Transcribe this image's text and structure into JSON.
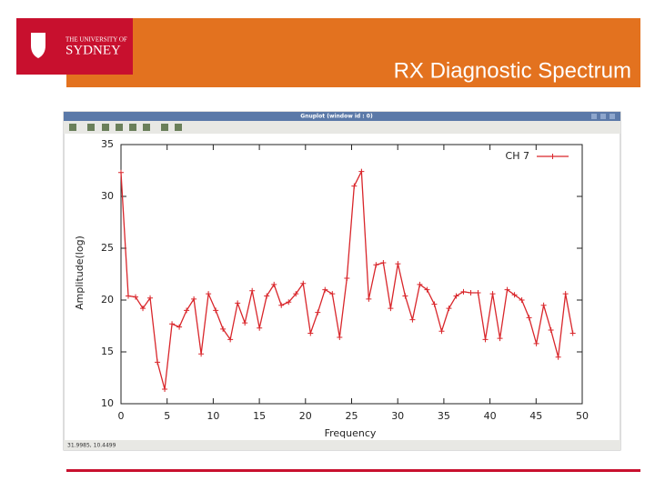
{
  "slide": {
    "title": "RX Diagnostic Spectrum",
    "logo_line1": "THE UNIVERSITY OF",
    "logo_line2": "SYDNEY"
  },
  "window": {
    "title": "Gnuplot (window id : 0)",
    "status": "31.9985, 10.4499"
  },
  "chart_data": {
    "type": "line",
    "xlabel": "Frequency",
    "ylabel": "Amplitude(log)",
    "legend": "upper right",
    "x": [
      0,
      0.79,
      1.58,
      2.37,
      3.16,
      3.95,
      4.74,
      5.53,
      6.32,
      7.11,
      7.9,
      8.69,
      9.48,
      10.27,
      11.06,
      11.85,
      12.64,
      13.43,
      14.22,
      15.01,
      15.8,
      16.59,
      17.38,
      18.17,
      18.96,
      19.75,
      20.54,
      21.33,
      22.12,
      22.91,
      23.7,
      24.49,
      25.28,
      26.07,
      26.86,
      27.65,
      28.44,
      29.23,
      30.02,
      30.81,
      31.6,
      32.39,
      33.18,
      33.97,
      34.76,
      35.55,
      36.34,
      37.13,
      37.92,
      38.71,
      39.5,
      40.29,
      41.08,
      41.87,
      42.66,
      43.45,
      44.24,
      45.03,
      45.82,
      46.61,
      47.4,
      48.19,
      48.98
    ],
    "series": [
      {
        "name": "CH 7",
        "color": "#d9262b",
        "values": [
          32.3,
          20.4,
          20.3,
          19.2,
          20.2,
          14.0,
          11.4,
          17.7,
          17.4,
          19.0,
          20.1,
          14.8,
          20.6,
          19.0,
          17.2,
          16.2,
          19.7,
          17.8,
          20.9,
          17.3,
          20.4,
          21.5,
          19.5,
          19.8,
          20.6,
          21.6,
          16.8,
          18.8,
          21.0,
          20.6,
          16.4,
          22.1,
          31.0,
          32.4,
          20.1,
          23.4,
          23.6,
          19.2,
          23.5,
          20.4,
          18.1,
          21.5,
          21.0,
          19.6,
          17.0,
          19.2,
          20.4,
          20.8,
          20.7,
          20.7,
          16.2,
          20.6,
          16.3,
          21.0,
          20.5,
          20.0,
          18.3,
          15.8,
          19.5,
          17.1,
          14.5,
          20.6,
          16.8
        ]
      }
    ],
    "xlim": [
      0,
      50
    ],
    "xticks": [
      0,
      5,
      10,
      15,
      20,
      25,
      30,
      35,
      40,
      45,
      50
    ],
    "ylim": [
      10,
      35
    ],
    "yticks": [
      10,
      15,
      20,
      25,
      30,
      35
    ]
  }
}
